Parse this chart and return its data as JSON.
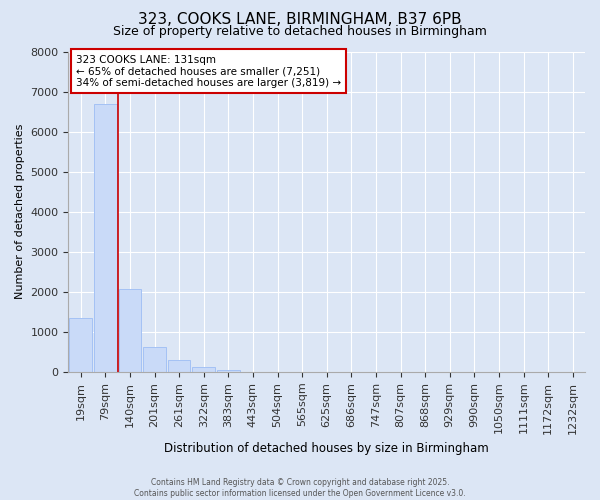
{
  "title": "323, COOKS LANE, BIRMINGHAM, B37 6PB",
  "subtitle": "Size of property relative to detached houses in Birmingham",
  "xlabel": "Distribution of detached houses by size in Birmingham",
  "ylabel": "Number of detached properties",
  "bar_labels": [
    "19sqm",
    "79sqm",
    "140sqm",
    "201sqm",
    "261sqm",
    "322sqm",
    "383sqm",
    "443sqm",
    "504sqm",
    "565sqm",
    "625sqm",
    "686sqm",
    "747sqm",
    "807sqm",
    "868sqm",
    "929sqm",
    "990sqm",
    "1050sqm",
    "1111sqm",
    "1172sqm",
    "1232sqm"
  ],
  "bar_values": [
    1350,
    6680,
    2080,
    630,
    310,
    130,
    55,
    10,
    10,
    0,
    0,
    0,
    0,
    0,
    0,
    0,
    0,
    0,
    0,
    0,
    0
  ],
  "bar_color": "#c9daf8",
  "bar_edge_color": "#a4c2f4",
  "ylim": [
    0,
    8000
  ],
  "yticks": [
    0,
    1000,
    2000,
    3000,
    4000,
    5000,
    6000,
    7000,
    8000
  ],
  "property_line_color": "#cc0000",
  "annotation_title": "323 COOKS LANE: 131sqm",
  "annotation_line1": "← 65% of detached houses are smaller (7,251)",
  "annotation_line2": "34% of semi-detached houses are larger (3,819) →",
  "annotation_box_color": "#ffffff",
  "annotation_box_edge": "#cc0000",
  "background_color": "#dce6f5",
  "plot_bg_color": "#dce6f5",
  "grid_color": "#ffffff",
  "footer1": "Contains HM Land Registry data © Crown copyright and database right 2025.",
  "footer2": "Contains public sector information licensed under the Open Government Licence v3.0."
}
